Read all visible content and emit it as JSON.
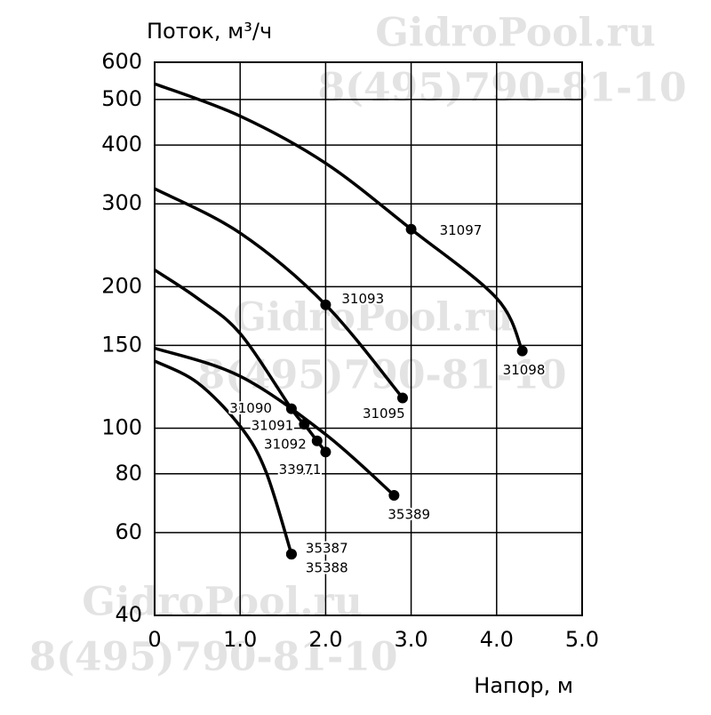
{
  "chart_data": {
    "type": "line",
    "y_label": "Поток, м³/ч",
    "x_label": "Напор, м",
    "log_y": true,
    "grid": true,
    "color": "#000000",
    "xlim": [
      0,
      5
    ],
    "xticks": [
      {
        "value": 0,
        "label": "0"
      },
      {
        "value": 1,
        "label": "1.0"
      },
      {
        "value": 2,
        "label": "2.0"
      },
      {
        "value": 3,
        "label": "3.0"
      },
      {
        "value": 4,
        "label": "4.0"
      },
      {
        "value": 5,
        "label": "5.0"
      }
    ],
    "ylim": [
      40,
      600
    ],
    "yticks": [
      40,
      60,
      80,
      100,
      150,
      200,
      300,
      400,
      500,
      600
    ],
    "series": [
      {
        "x": [
          0,
          1,
          2,
          3,
          4,
          4.3
        ],
        "values": [
          540,
          461,
          366,
          265,
          189,
          146
        ]
      },
      {
        "x": [
          0,
          1,
          2,
          2.9
        ],
        "values": [
          323,
          260,
          183,
          116
        ]
      },
      {
        "x": [
          0,
          0.5,
          1,
          1.6,
          1.75,
          1.9,
          2.0
        ],
        "values": [
          217,
          189,
          159,
          110,
          102,
          94,
          89
        ]
      },
      {
        "x": [
          0,
          1,
          2,
          2.8
        ],
        "values": [
          148,
          129,
          97,
          72
        ]
      },
      {
        "x": [
          0,
          0.5,
          1,
          1.3,
          1.6
        ],
        "values": [
          139,
          125,
          101,
          81,
          54
        ]
      }
    ],
    "points": [
      {
        "label": "31097",
        "x": 3.0,
        "value": 265
      },
      {
        "label": "31098",
        "x": 4.3,
        "value": 146
      },
      {
        "label": "31093",
        "x": 2.0,
        "value": 183
      },
      {
        "label": "31095",
        "x": 2.9,
        "value": 116
      },
      {
        "label": "31090",
        "x": 1.6,
        "value": 110
      },
      {
        "label": "31091",
        "x": 1.75,
        "value": 102
      },
      {
        "label": "31092",
        "x": 1.9,
        "value": 94
      },
      {
        "label": "33971",
        "x": 2.0,
        "value": 89
      },
      {
        "label": "35389",
        "x": 2.8,
        "value": 72
      },
      {
        "label": "35387",
        "x": 1.6,
        "value": 54
      },
      {
        "label": "35388",
        "x": 1.6,
        "value": 54
      }
    ],
    "watermarks": [
      "GidroPool.ru",
      "8(495)790-81-10",
      "GidroPool.ru",
      "8(495)790-81-10",
      "GidroPool.ru",
      "8(495)790-81-10"
    ]
  }
}
